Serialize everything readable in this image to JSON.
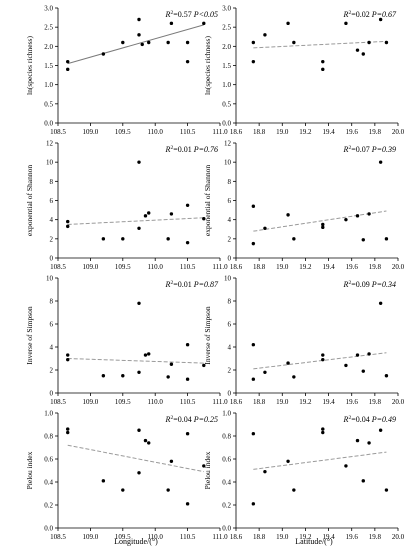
{
  "figure": {
    "xlabels": {
      "longitude": "Longitude/(°)",
      "latitude": "Latitude/(°)"
    }
  },
  "chart_data": [
    {
      "type": "scatter",
      "ylabel": "ln(species richness)",
      "xlabel": "",
      "annotation": {
        "r2": "0.57",
        "p": "P<0.05"
      },
      "trend": "solid",
      "xlim": [
        108.5,
        111.0
      ],
      "ylim": [
        0.0,
        3.0
      ],
      "xticks": [
        "108.5",
        "109.0",
        "109.5",
        "110.0",
        "110.5",
        "111.0"
      ],
      "yticks": [
        "0.0",
        "0.5",
        "1.0",
        "1.5",
        "2.0",
        "2.5",
        "3.0"
      ],
      "x": [
        108.65,
        108.65,
        109.2,
        109.5,
        109.75,
        109.75,
        109.8,
        109.9,
        110.2,
        110.25,
        110.5,
        110.5,
        110.75
      ],
      "y": [
        1.6,
        1.4,
        1.8,
        2.1,
        2.7,
        2.3,
        2.05,
        2.1,
        2.1,
        2.6,
        2.1,
        1.6,
        2.6
      ],
      "fit": [
        [
          108.65,
          1.55
        ],
        [
          110.75,
          2.56
        ]
      ]
    },
    {
      "type": "scatter",
      "ylabel": "ln(species richness)",
      "xlabel": "",
      "annotation": {
        "r2": "0.02",
        "p": "P=0.67"
      },
      "trend": "dashed",
      "xlim": [
        18.6,
        20.0
      ],
      "ylim": [
        0.0,
        3.0
      ],
      "xticks": [
        "18.6",
        "18.8",
        "19.0",
        "19.2",
        "19.4",
        "19.6",
        "19.8",
        "20.0"
      ],
      "yticks": [
        "0.0",
        "0.5",
        "1.0",
        "1.5",
        "2.0",
        "2.5",
        "3.0"
      ],
      "x": [
        18.75,
        18.75,
        18.85,
        19.05,
        19.1,
        19.35,
        19.35,
        19.55,
        19.65,
        19.7,
        19.75,
        19.85,
        19.9
      ],
      "y": [
        2.1,
        1.6,
        2.3,
        2.6,
        2.1,
        1.6,
        1.4,
        2.6,
        1.9,
        1.8,
        2.1,
        2.7,
        2.1
      ],
      "fit": [
        [
          18.75,
          1.96
        ],
        [
          19.9,
          2.13
        ]
      ]
    },
    {
      "type": "scatter",
      "ylabel": "exponential of Shannon",
      "xlabel": "",
      "annotation": {
        "r2": "0.01",
        "p": "P=0.76"
      },
      "trend": "dashed",
      "xlim": [
        108.5,
        111.0
      ],
      "ylim": [
        0,
        12
      ],
      "xticks": [
        "108.5",
        "109.0",
        "109.5",
        "110.0",
        "110.5",
        "111.0"
      ],
      "yticks": [
        "0",
        "2",
        "4",
        "6",
        "8",
        "10",
        "12"
      ],
      "x": [
        108.65,
        108.65,
        109.2,
        109.5,
        109.75,
        109.75,
        109.85,
        109.9,
        110.2,
        110.25,
        110.5,
        110.5,
        110.75
      ],
      "y": [
        3.8,
        3.3,
        2.0,
        2.0,
        10.0,
        3.1,
        4.4,
        4.7,
        2.0,
        4.6,
        5.5,
        1.6,
        4.1
      ],
      "fit": [
        [
          108.65,
          3.5
        ],
        [
          110.75,
          4.2
        ]
      ]
    },
    {
      "type": "scatter",
      "ylabel": "exponential of Shannon",
      "xlabel": "",
      "annotation": {
        "r2": "0.07",
        "p": "P=0.39"
      },
      "trend": "dashed",
      "xlim": [
        18.6,
        20.0
      ],
      "ylim": [
        0,
        12
      ],
      "xticks": [
        "18.6",
        "18.8",
        "19.0",
        "19.2",
        "19.4",
        "19.6",
        "19.8",
        "20.0"
      ],
      "yticks": [
        "0",
        "2",
        "4",
        "6",
        "8",
        "10",
        "12"
      ],
      "x": [
        18.75,
        18.75,
        18.85,
        19.05,
        19.1,
        19.35,
        19.35,
        19.55,
        19.65,
        19.7,
        19.75,
        19.85,
        19.9
      ],
      "y": [
        5.4,
        1.5,
        3.1,
        4.5,
        2.0,
        3.5,
        3.2,
        4.0,
        4.4,
        1.9,
        4.6,
        10.0,
        2.0
      ],
      "fit": [
        [
          18.75,
          2.8
        ],
        [
          19.9,
          4.9
        ]
      ]
    },
    {
      "type": "scatter",
      "ylabel": "Inverse of Simpson",
      "xlabel": "",
      "annotation": {
        "r2": "0.01",
        "p": "P=0.87"
      },
      "trend": "dashed",
      "xlim": [
        108.5,
        111.0
      ],
      "ylim": [
        0,
        10
      ],
      "xticks": [
        "108.5",
        "109.0",
        "109.5",
        "110.0",
        "110.5",
        "111.0"
      ],
      "yticks": [
        "0",
        "2",
        "4",
        "6",
        "8",
        "10"
      ],
      "x": [
        108.65,
        108.65,
        109.2,
        109.5,
        109.75,
        109.75,
        109.85,
        109.9,
        110.2,
        110.25,
        110.5,
        110.5,
        110.75
      ],
      "y": [
        3.3,
        2.9,
        1.5,
        1.5,
        7.8,
        1.8,
        3.3,
        3.4,
        1.4,
        2.5,
        4.2,
        1.2,
        2.4
      ],
      "fit": [
        [
          108.65,
          3.0
        ],
        [
          110.75,
          2.6
        ]
      ]
    },
    {
      "type": "scatter",
      "ylabel": "Inverse of Simpson",
      "xlabel": "",
      "annotation": {
        "r2": "0.09",
        "p": "P=0.34"
      },
      "trend": "dashed",
      "xlim": [
        18.6,
        20.0
      ],
      "ylim": [
        0,
        10
      ],
      "xticks": [
        "18.6",
        "18.8",
        "19.0",
        "19.2",
        "19.4",
        "19.6",
        "19.8",
        "20.0"
      ],
      "yticks": [
        "0",
        "2",
        "4",
        "6",
        "8",
        "10"
      ],
      "x": [
        18.75,
        18.75,
        18.85,
        19.05,
        19.1,
        19.35,
        19.35,
        19.55,
        19.65,
        19.7,
        19.75,
        19.85,
        19.9
      ],
      "y": [
        4.2,
        1.2,
        1.8,
        2.6,
        1.4,
        3.3,
        2.9,
        2.4,
        3.3,
        1.9,
        3.4,
        7.8,
        1.5
      ],
      "fit": [
        [
          18.75,
          2.1
        ],
        [
          19.9,
          3.5
        ]
      ]
    },
    {
      "type": "scatter",
      "ylabel": "Pielou index",
      "xlabel": "Longitude/(°)",
      "annotation": {
        "r2": "0.04",
        "p": "P=0.25"
      },
      "trend": "dashed",
      "xlim": [
        108.5,
        111.0
      ],
      "ylim": [
        0.0,
        1.0
      ],
      "xticks": [
        "108.5",
        "109.0",
        "109.5",
        "110.0",
        "110.5",
        "111.0"
      ],
      "yticks": [
        "0.0",
        "0.2",
        "0.4",
        "0.6",
        "0.8",
        "1.0"
      ],
      "x": [
        108.65,
        108.65,
        109.2,
        109.5,
        109.75,
        109.75,
        109.85,
        109.9,
        110.2,
        110.25,
        110.5,
        110.5,
        110.75
      ],
      "y": [
        0.86,
        0.83,
        0.41,
        0.33,
        0.85,
        0.48,
        0.76,
        0.74,
        0.33,
        0.58,
        0.82,
        0.21,
        0.54
      ],
      "fit": [
        [
          108.65,
          0.72
        ],
        [
          110.75,
          0.49
        ]
      ]
    },
    {
      "type": "scatter",
      "ylabel": "Pielou index",
      "xlabel": "Latitude/(°)",
      "annotation": {
        "r2": "0.04",
        "p": "P=0.49"
      },
      "trend": "dashed",
      "xlim": [
        18.6,
        20.0
      ],
      "ylim": [
        0.0,
        1.0
      ],
      "xticks": [
        "18.6",
        "18.8",
        "19.0",
        "19.2",
        "19.4",
        "19.6",
        "19.8",
        "20.0"
      ],
      "yticks": [
        "0.0",
        "0.2",
        "0.4",
        "0.6",
        "0.8",
        "1.0"
      ],
      "x": [
        18.75,
        18.75,
        18.85,
        19.05,
        19.1,
        19.35,
        19.35,
        19.55,
        19.65,
        19.7,
        19.75,
        19.85,
        19.9
      ],
      "y": [
        0.82,
        0.21,
        0.49,
        0.58,
        0.33,
        0.86,
        0.83,
        0.54,
        0.76,
        0.41,
        0.74,
        0.85,
        0.33
      ],
      "fit": [
        [
          18.75,
          0.51
        ],
        [
          19.9,
          0.66
        ]
      ]
    }
  ]
}
